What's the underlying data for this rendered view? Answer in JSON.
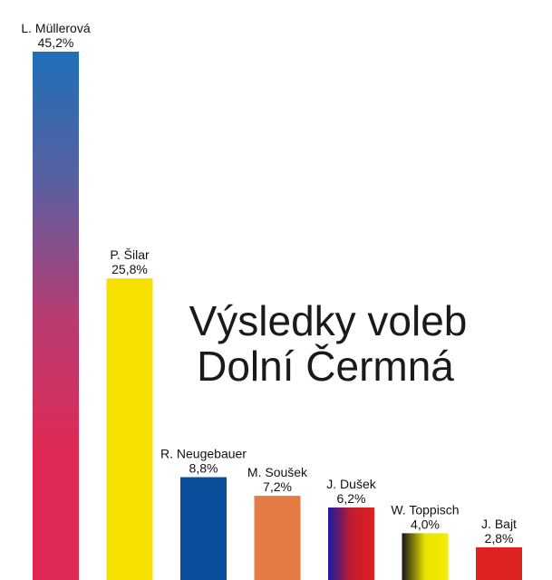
{
  "chart_data": {
    "type": "bar",
    "title": "Výsledky voleb",
    "subtitle": "Dolní Čermná",
    "xlabel": "",
    "ylabel": "",
    "ylim": [
      0,
      45.2
    ],
    "grid": false,
    "legend": "none",
    "categories": [
      "L. Müllerová",
      "P. Šilar",
      "R. Neugebauer",
      "M. Soušek",
      "J. Dušek",
      "W. Toppisch",
      "J. Bajt"
    ],
    "value_labels": [
      "45,2%",
      "25,8%",
      "8,8%",
      "7,2%",
      "6,2%",
      "4,0%",
      "2,8%"
    ],
    "values": [
      45.2,
      25.8,
      8.8,
      7.2,
      6.2,
      4.0,
      2.8
    ],
    "fills": [
      {
        "type": "vgradient",
        "colors": [
          "#1f6fb8",
          "#5b5fa0",
          "#b63c72",
          "#df2a55",
          "#df2a55"
        ]
      },
      {
        "type": "solid",
        "colors": [
          "#f5e000"
        ]
      },
      {
        "type": "solid",
        "colors": [
          "#0a4d9a"
        ]
      },
      {
        "type": "solid",
        "colors": [
          "#e47b45"
        ]
      },
      {
        "type": "hgradient",
        "colors": [
          "#1a1aa0",
          "#c21b2e",
          "#e02020"
        ]
      },
      {
        "type": "hgradient",
        "colors": [
          "#151515",
          "#e8e200",
          "#f5ee00"
        ]
      },
      {
        "type": "solid",
        "colors": [
          "#dd2222"
        ]
      }
    ]
  }
}
